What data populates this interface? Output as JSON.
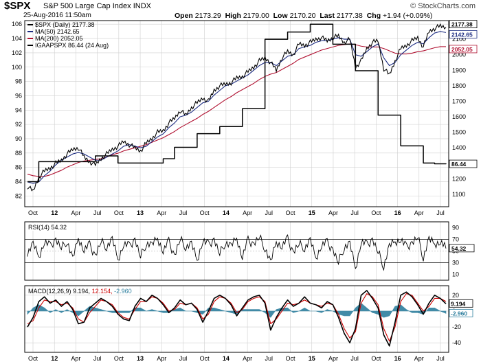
{
  "header": {
    "symbol": "$SPX",
    "description": "S&P 500 Large Cap Index",
    "exchange": "INDX",
    "datetime": "25-Aug-2016 11:50am",
    "open_label": "Open",
    "open": "2173.29",
    "high_label": "High",
    "high": "2179.00",
    "low_label": "Low",
    "low": "2170.20",
    "last_label": "Last",
    "last": "2177.38",
    "chg_label": "Chg",
    "chg": "+1.94 (+0.09%)",
    "brand": "© StockCharts.com"
  },
  "colors": {
    "price": "#000000",
    "ma50": "#1a2a80",
    "ma200": "#b01030",
    "igaap": "#000000",
    "rsi": "#000000",
    "macd": "#000000",
    "signal": "#cc0000",
    "histogram": "#2e7f9e",
    "grid": "#cfcfcf"
  },
  "chart_data": [
    {
      "panel": "price",
      "type": "line",
      "legend": [
        "$SPX (Daily) 2177.38",
        "MA(50) 2142.65",
        "MA(200) 2052.05",
        "IGAAPSPX 86.44 (24 Aug)"
      ],
      "x_ticks": [
        "Oct",
        "12",
        "Apr",
        "Jul",
        "Oct",
        "13",
        "Apr",
        "Jul",
        "Oct",
        "14",
        "Apr",
        "Jul",
        "Oct",
        "15",
        "Apr",
        "Jul",
        "Oct",
        "16",
        "Apr",
        "Jul"
      ],
      "y_left_ticks": [
        82,
        84,
        86,
        88,
        90,
        92,
        94,
        96,
        98,
        100,
        102,
        104,
        106
      ],
      "y_left_range": [
        80.5,
        106.5
      ],
      "y_right_ticks": [
        1100,
        1200,
        1300,
        1400,
        1500,
        1600,
        1700,
        1800,
        1900,
        2000,
        2100
      ],
      "y_right_range": [
        1020,
        2220
      ],
      "right_tags": [
        "2177.38",
        "2142.65",
        "2052.05",
        "86.44"
      ],
      "series": [
        {
          "name": "$SPX",
          "axis": "right",
          "values": [
            1150,
            1120,
            1210,
            1250,
            1270,
            1300,
            1320,
            1360,
            1390,
            1400,
            1340,
            1310,
            1290,
            1330,
            1360,
            1390,
            1410,
            1440,
            1420,
            1400,
            1380,
            1430,
            1460,
            1500,
            1510,
            1560,
            1590,
            1640,
            1610,
            1660,
            1690,
            1720,
            1700,
            1770,
            1800,
            1810,
            1820,
            1850,
            1860,
            1890,
            1920,
            1960,
            1980,
            1950,
            1900,
            1980,
            2020,
            2000,
            2070,
            2060,
            2080,
            2100,
            2110,
            2090,
            2110,
            2120,
            2080,
            2100,
            1920,
            1960,
            2040,
            2080,
            2090,
            1910,
            1870,
            1960,
            2040,
            2060,
            2090,
            2110,
            2050,
            2150,
            2170,
            2185,
            2177
          ]
        },
        {
          "name": "MA(50)",
          "axis": "right",
          "values": [
            1180,
            1170,
            1180,
            1220,
            1250,
            1290,
            1320,
            1340,
            1360,
            1370,
            1360,
            1340,
            1320,
            1320,
            1340,
            1360,
            1380,
            1410,
            1420,
            1410,
            1400,
            1410,
            1440,
            1470,
            1490,
            1530,
            1560,
            1600,
            1610,
            1630,
            1660,
            1690,
            1700,
            1740,
            1770,
            1800,
            1810,
            1830,
            1850,
            1870,
            1900,
            1930,
            1950,
            1950,
            1930,
            1960,
            1990,
            2000,
            2040,
            2050,
            2060,
            2080,
            2090,
            2090,
            2100,
            2110,
            2100,
            2100,
            2000,
            1990,
            2020,
            2050,
            2070,
            1980,
            1930,
            1950,
            2000,
            2030,
            2060,
            2080,
            2070,
            2110,
            2140,
            2150,
            2143
          ]
        },
        {
          "name": "MA(200)",
          "axis": "right",
          "values": [
            1230,
            1220,
            1215,
            1215,
            1225,
            1240,
            1255,
            1275,
            1290,
            1305,
            1315,
            1320,
            1325,
            1330,
            1340,
            1355,
            1365,
            1380,
            1390,
            1400,
            1410,
            1420,
            1435,
            1450,
            1465,
            1485,
            1505,
            1530,
            1550,
            1570,
            1590,
            1615,
            1635,
            1660,
            1685,
            1710,
            1730,
            1755,
            1775,
            1795,
            1815,
            1840,
            1860,
            1875,
            1885,
            1905,
            1925,
            1945,
            1970,
            1985,
            2000,
            2015,
            2030,
            2040,
            2050,
            2060,
            2065,
            2070,
            2065,
            2055,
            2050,
            2050,
            2050,
            2040,
            2025,
            2010,
            2005,
            2005,
            2010,
            2020,
            2025,
            2035,
            2045,
            2052,
            2052
          ]
        },
        {
          "name": "IGAAPSPX",
          "axis": "left",
          "step": true,
          "values": [
            84,
            84,
            86.8,
            86.8,
            86.8,
            86.8,
            86.8,
            86.8,
            86.8,
            86.8,
            86.8,
            86.8,
            87.6,
            87.6,
            87.6,
            87.6,
            86.6,
            86.6,
            86.6,
            86.6,
            86.6,
            86.6,
            86.6,
            86.6,
            87.2,
            87.2,
            88.8,
            88.8,
            88.8,
            88.8,
            90.7,
            90.7,
            90.7,
            90.7,
            91.7,
            91.7,
            91.7,
            91.7,
            94.2,
            94.2,
            94.2,
            94.2,
            103.9,
            103.9,
            103.9,
            103.9,
            104.9,
            104.9,
            104.9,
            104.9,
            106.0,
            106.0,
            106.0,
            106.0,
            103.2,
            103.2,
            103.2,
            103.2,
            99.5,
            99.5,
            99.5,
            99.5,
            93.3,
            93.3,
            93.3,
            93.3,
            89.0,
            89.0,
            89.0,
            89.0,
            86.6,
            86.6,
            86.5,
            86.5,
            86.44
          ]
        }
      ]
    },
    {
      "panel": "rsi",
      "type": "line",
      "legend": [
        "RSI(14) 54.32"
      ],
      "y_ticks": [
        90,
        70,
        50,
        30,
        10
      ],
      "y_range": [
        0,
        100
      ],
      "levels": [
        70,
        30
      ],
      "right_tags": [
        "54.32"
      ],
      "series": [
        {
          "name": "RSI(14)",
          "values": [
            48,
            62,
            40,
            66,
            58,
            70,
            55,
            68,
            36,
            72,
            52,
            60,
            42,
            66,
            58,
            70,
            35,
            62,
            58,
            70,
            40,
            64,
            60,
            72,
            50,
            66,
            42,
            70,
            58,
            62,
            34,
            68,
            60,
            70,
            45,
            66,
            58,
            72,
            40,
            68,
            62,
            74,
            56,
            30,
            66,
            58,
            70,
            48,
            62,
            56,
            68,
            38,
            60,
            64,
            52,
            30,
            58,
            62,
            20,
            66,
            60,
            70,
            48,
            25,
            58,
            66,
            70,
            56,
            64,
            74,
            40,
            70,
            62,
            66,
            54.32
          ]
        }
      ]
    },
    {
      "panel": "macd",
      "type": "line",
      "legend": [
        "MACD(12,26,9)",
        "9.194",
        "12.154",
        "-2.960"
      ],
      "y_ticks": [
        20,
        0,
        -20,
        -40
      ],
      "y_range": [
        -52,
        32
      ],
      "right_tags": [
        "9.194",
        "-2.960"
      ],
      "series": [
        {
          "name": "MACD",
          "values": [
            -20,
            -8,
            12,
            18,
            10,
            14,
            6,
            12,
            2,
            -16,
            -14,
            4,
            10,
            16,
            12,
            6,
            -4,
            -10,
            -12,
            6,
            16,
            12,
            20,
            16,
            8,
            -2,
            4,
            14,
            8,
            10,
            2,
            -14,
            0,
            16,
            20,
            16,
            8,
            -6,
            4,
            14,
            18,
            20,
            10,
            -24,
            -8,
            4,
            14,
            6,
            10,
            18,
            10,
            8,
            4,
            12,
            8,
            -8,
            -28,
            -40,
            -22,
            20,
            26,
            16,
            4,
            -30,
            -44,
            -14,
            20,
            24,
            18,
            8,
            -4,
            10,
            20,
            16,
            9.194
          ]
        },
        {
          "name": "Signal",
          "values": [
            -16,
            -12,
            4,
            14,
            12,
            12,
            8,
            10,
            4,
            -10,
            -14,
            -2,
            6,
            14,
            12,
            8,
            -2,
            -8,
            -10,
            2,
            12,
            12,
            18,
            16,
            10,
            0,
            2,
            10,
            8,
            10,
            4,
            -10,
            -4,
            12,
            18,
            16,
            10,
            -2,
            2,
            12,
            16,
            18,
            12,
            -16,
            -10,
            0,
            10,
            8,
            10,
            14,
            10,
            8,
            6,
            10,
            8,
            -4,
            -22,
            -34,
            -26,
            10,
            22,
            18,
            8,
            -22,
            -38,
            -20,
            12,
            22,
            20,
            10,
            0,
            6,
            16,
            16,
            12.154
          ]
        },
        {
          "name": "Histogram",
          "values": [
            -4,
            4,
            8,
            4,
            -2,
            2,
            -2,
            2,
            -2,
            -6,
            0,
            6,
            4,
            2,
            0,
            -2,
            -2,
            -2,
            -2,
            4,
            4,
            0,
            2,
            0,
            -2,
            -2,
            2,
            4,
            0,
            0,
            -2,
            -4,
            4,
            4,
            2,
            0,
            -2,
            -4,
            2,
            2,
            2,
            2,
            -2,
            -8,
            2,
            4,
            4,
            -2,
            0,
            4,
            0,
            0,
            -2,
            2,
            0,
            -4,
            -6,
            -6,
            4,
            10,
            4,
            -2,
            -4,
            -8,
            -6,
            6,
            8,
            2,
            -2,
            -2,
            -4,
            4,
            4,
            0,
            -2.96
          ]
        }
      ]
    }
  ]
}
